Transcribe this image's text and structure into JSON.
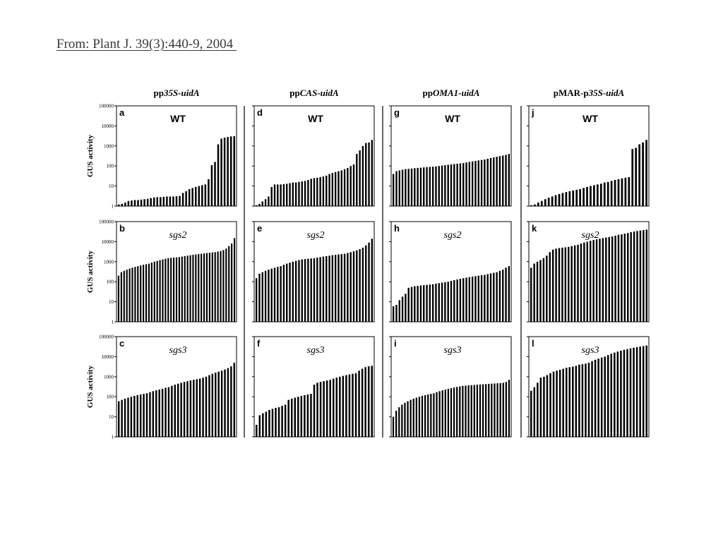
{
  "source_citation": "From: Plant J. 39(3):440-9, 2004 ",
  "y_axis_label": "GUS activity",
  "y_tick_labels": [
    "1",
    "10",
    "100",
    "1000",
    "10000",
    "100000"
  ],
  "columns": [
    {
      "prefix": "pp",
      "italic": "35S-uidA",
      "suffix": ""
    },
    {
      "prefix": "pp",
      "italic": "CAS-uidA",
      "suffix": ""
    },
    {
      "prefix": "pp",
      "italic": "OMA1-uidA",
      "suffix": ""
    },
    {
      "prefix": "pMAR-p",
      "italic": "35S-uidA",
      "suffix": ""
    }
  ],
  "chart_data": [
    {
      "type": "bar",
      "panel": "a",
      "line": "WT",
      "scale": "log",
      "ylim": [
        1,
        100000
      ],
      "values": [
        1.2,
        1.3,
        1.5,
        1.8,
        1.9,
        2,
        2,
        2.1,
        2.2,
        2.3,
        2.5,
        2.7,
        2.8,
        2.8,
        2.9,
        3,
        3,
        3,
        3.1,
        3.2,
        4.5,
        5.5,
        7,
        8,
        9,
        10,
        11,
        12,
        22,
        110,
        160,
        1200,
        2300,
        2600,
        2800,
        3000,
        3100
      ]
    },
    {
      "type": "bar",
      "panel": "d",
      "line": "WT",
      "scale": "log",
      "ylim": [
        1,
        100000
      ],
      "values": [
        1.1,
        1.3,
        1.7,
        2.2,
        3,
        9,
        12,
        12,
        12,
        12.5,
        13,
        14,
        15,
        15,
        16,
        17,
        18,
        20,
        23,
        25,
        26,
        28,
        30,
        33,
        40,
        45,
        50,
        55,
        60,
        70,
        80,
        100,
        120,
        400,
        600,
        1000,
        1400,
        1500,
        2000
      ]
    },
    {
      "type": "bar",
      "panel": "g",
      "line": "WT",
      "scale": "log",
      "ylim": [
        1,
        100000
      ],
      "values": [
        40,
        55,
        60,
        65,
        70,
        72,
        75,
        78,
        80,
        82,
        85,
        88,
        90,
        92,
        95,
        100,
        105,
        110,
        115,
        120,
        125,
        130,
        135,
        140,
        150,
        160,
        170,
        180,
        190,
        200,
        210,
        230,
        250,
        270,
        290,
        310,
        330,
        360,
        400
      ]
    },
    {
      "type": "bar",
      "panel": "j",
      "line": "WT",
      "scale": "log",
      "ylim": [
        1,
        100000
      ],
      "values": [
        1.1,
        1.2,
        1.5,
        1.8,
        2.2,
        2.6,
        3,
        3.5,
        4,
        4.5,
        5,
        5.5,
        6,
        6.5,
        7,
        8,
        9,
        10,
        11,
        12,
        13,
        15,
        16,
        18,
        20,
        22,
        24,
        26,
        28,
        700,
        800,
        1200,
        1500,
        2000
      ]
    },
    {
      "type": "bar",
      "panel": "b",
      "line": "sgs2",
      "scale": "log",
      "ylim": [
        1,
        100000
      ],
      "values": [
        200,
        300,
        350,
        400,
        450,
        500,
        550,
        600,
        650,
        700,
        750,
        800,
        900,
        1000,
        1100,
        1200,
        1300,
        1400,
        1500,
        1550,
        1600,
        1650,
        1700,
        1800,
        1900,
        2000,
        2100,
        2200,
        2300,
        2400,
        2500,
        2600,
        2700,
        2800,
        2900,
        3000,
        3200,
        3400,
        3800,
        4500,
        6000,
        8000,
        15000
      ]
    },
    {
      "type": "bar",
      "panel": "e",
      "line": "sgs2",
      "scale": "log",
      "ylim": [
        1,
        100000
      ],
      "values": [
        150,
        250,
        300,
        350,
        400,
        450,
        500,
        550,
        600,
        700,
        800,
        900,
        1000,
        1100,
        1200,
        1300,
        1350,
        1400,
        1450,
        1500,
        1600,
        1700,
        1800,
        1900,
        2000,
        2100,
        2200,
        2300,
        2400,
        2500,
        2700,
        3000,
        3300,
        3700,
        4200,
        5000,
        6500,
        9000,
        14000
      ]
    },
    {
      "type": "bar",
      "panel": "h",
      "line": "sgs2",
      "scale": "log",
      "ylim": [
        1,
        100000
      ],
      "values": [
        6,
        7,
        12,
        18,
        25,
        50,
        55,
        60,
        62,
        65,
        68,
        70,
        72,
        75,
        80,
        85,
        90,
        95,
        100,
        110,
        120,
        130,
        140,
        150,
        160,
        170,
        180,
        190,
        200,
        210,
        220,
        240,
        260,
        280,
        300,
        350,
        400,
        500,
        600
      ]
    },
    {
      "type": "bar",
      "panel": "k",
      "line": "sgs2",
      "scale": "log",
      "ylim": [
        1,
        100000
      ],
      "values": [
        500,
        800,
        1000,
        1200,
        1500,
        2000,
        3000,
        4000,
        4500,
        4800,
        5000,
        5200,
        5500,
        6000,
        6500,
        7000,
        8000,
        9000,
        10000,
        11000,
        12000,
        13000,
        14000,
        15000,
        16000,
        17000,
        18000,
        20000,
        22000,
        23000,
        25000,
        27000,
        30000,
        32000,
        34000,
        36000,
        38000,
        40000
      ]
    },
    {
      "type": "bar",
      "panel": "c",
      "line": "sgs3",
      "scale": "log",
      "ylim": [
        1,
        100000
      ],
      "values": [
        60,
        70,
        80,
        90,
        100,
        110,
        120,
        130,
        140,
        150,
        170,
        190,
        210,
        230,
        250,
        280,
        300,
        350,
        400,
        450,
        500,
        550,
        600,
        650,
        700,
        750,
        800,
        900,
        1000,
        1200,
        1400,
        1600,
        1800,
        2000,
        2300,
        2700,
        3300,
        5000
      ]
    },
    {
      "type": "bar",
      "panel": "f",
      "line": "sgs3",
      "scale": "log",
      "ylim": [
        1,
        100000
      ],
      "values": [
        4,
        12,
        15,
        18,
        22,
        25,
        28,
        30,
        35,
        40,
        70,
        80,
        90,
        100,
        110,
        120,
        130,
        140,
        400,
        500,
        550,
        600,
        650,
        700,
        800,
        900,
        1000,
        1100,
        1200,
        1300,
        1400,
        1500,
        2000,
        2500,
        3000,
        3300,
        3500
      ]
    },
    {
      "type": "bar",
      "panel": "i",
      "line": "sgs3",
      "scale": "log",
      "ylim": [
        1,
        100000
      ],
      "values": [
        10,
        20,
        30,
        40,
        50,
        60,
        70,
        80,
        90,
        100,
        110,
        120,
        130,
        140,
        150,
        170,
        190,
        210,
        230,
        250,
        270,
        290,
        310,
        330,
        350,
        360,
        370,
        380,
        390,
        400,
        410,
        420,
        430,
        440,
        450,
        460,
        470,
        480,
        500,
        550,
        700
      ]
    },
    {
      "type": "bar",
      "panel": "l",
      "line": "sgs3",
      "scale": "log",
      "ylim": [
        1,
        100000
      ],
      "values": [
        200,
        300,
        500,
        900,
        1000,
        1200,
        1500,
        1800,
        2000,
        2200,
        2500,
        2800,
        3000,
        3200,
        3500,
        4000,
        4200,
        4500,
        5000,
        6000,
        7000,
        8000,
        9000,
        10000,
        12000,
        14000,
        16000,
        18000,
        20000,
        22000,
        24000,
        26000,
        28000,
        30000,
        32000,
        34000,
        36000
      ]
    }
  ]
}
